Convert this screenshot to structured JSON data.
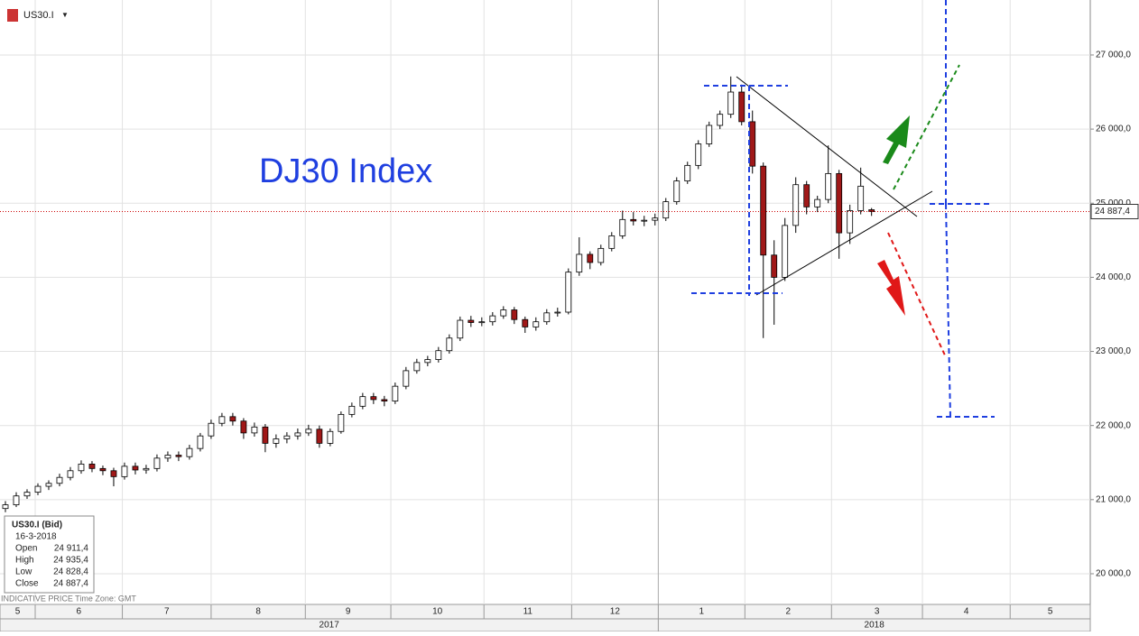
{
  "chart_data": {
    "type": "candlestick",
    "title": "DJ30 Index",
    "symbol": "US30.I",
    "footer": "INDICATIVE PRICE   Time Zone: GMT",
    "info": {
      "title": "US30.I (Bid)",
      "date": "16-3-2018",
      "rows": [
        {
          "name": "Open",
          "value": 24911.4,
          "label": "24 911,4"
        },
        {
          "name": "High",
          "value": 24935.4,
          "label": "24 935,4"
        },
        {
          "name": "Low",
          "value": 24828.4,
          "label": "24 828,4"
        },
        {
          "name": "Close",
          "value": 24887.4,
          "label": "24 887,4"
        }
      ]
    },
    "last_price": {
      "value": 24887.4,
      "label": "24 887,4"
    },
    "xlim": [
      -0.5,
      100.2
    ],
    "xticks": [
      2.75,
      10.8,
      19,
      27.7,
      35.6,
      44.2,
      52.3,
      60.3,
      68.3,
      76.3,
      84.7,
      92.8
    ],
    "periods": [
      "5",
      "6",
      "7",
      "8",
      "9",
      "10",
      "11",
      "12",
      "1",
      "2",
      "3",
      "4",
      "5"
    ],
    "years": [
      "2017",
      "2018"
    ],
    "ylim": [
      19732,
      27742
    ],
    "yticks": [
      {
        "value": 20000,
        "label": "20 000,0"
      },
      {
        "value": 21000,
        "label": "21 000,0"
      },
      {
        "value": 22000,
        "label": "22 000,0"
      },
      {
        "value": 23000,
        "label": "23 000,0"
      },
      {
        "value": 24000,
        "label": "24 000,0"
      },
      {
        "value": 25000,
        "label": "25 000,0"
      },
      {
        "value": 26000,
        "label": "26 000,0"
      },
      {
        "value": 27000,
        "label": "27 000,0"
      }
    ],
    "up_color": "#ffffff",
    "down_color": "#a01818",
    "open": [
      20880,
      20930,
      21050,
      21100,
      21180,
      21220,
      21300,
      21390,
      21480,
      21420,
      21390,
      21310,
      21450,
      21400,
      21420,
      21560,
      21600,
      21580,
      21690,
      21860,
      22030,
      22120,
      22060,
      21900,
      21980,
      21760,
      21820,
      21860,
      21900,
      21950,
      21760,
      21920,
      22150,
      22260,
      22390,
      22350,
      22330,
      22530,
      22740,
      22850,
      22890,
      23010,
      23180,
      23420,
      23390,
      23400,
      23480,
      23560,
      23430,
      23330,
      23400,
      23520,
      23530,
      24070,
      24310,
      24200,
      24390,
      24560,
      24780,
      24760,
      24770,
      24800,
      25020,
      25300,
      25510,
      25800,
      26050,
      26200,
      26500,
      26100,
      25500,
      24300,
      24000,
      24700,
      25250,
      24950,
      25050,
      25400,
      24600,
      24900,
      24911.4
    ],
    "high": [
      20980,
      21100,
      21140,
      21220,
      21260,
      21350,
      21440,
      21530,
      21520,
      21460,
      21430,
      21500,
      21500,
      21470,
      21610,
      21650,
      21650,
      21740,
      21900,
      22080,
      22170,
      22170,
      22100,
      22040,
      22020,
      21880,
      21910,
      21960,
      22010,
      22000,
      21960,
      22190,
      22310,
      22440,
      22440,
      22400,
      22580,
      22790,
      22900,
      22940,
      23060,
      23230,
      23470,
      23480,
      23460,
      23530,
      23610,
      23600,
      23470,
      23460,
      23570,
      23590,
      24120,
      24540,
      24350,
      24440,
      24610,
      24900,
      24880,
      24830,
      24860,
      25070,
      25350,
      25560,
      25850,
      26100,
      26250,
      26710,
      26600,
      26250,
      25550,
      24500,
      24800,
      25350,
      25300,
      25100,
      25780,
      25450,
      24980,
      25480,
      24935.4
    ],
    "low": [
      20830,
      20900,
      21010,
      21060,
      21130,
      21180,
      21260,
      21350,
      21370,
      21330,
      21180,
      21270,
      21340,
      21350,
      21380,
      21510,
      21520,
      21540,
      21650,
      21820,
      21990,
      22000,
      21820,
      21850,
      21640,
      21700,
      21760,
      21810,
      21860,
      21700,
      21720,
      21890,
      22110,
      22220,
      22290,
      22260,
      22290,
      22490,
      22700,
      22800,
      22850,
      22970,
      23140,
      23330,
      23340,
      23350,
      23440,
      23370,
      23250,
      23280,
      23360,
      23470,
      23500,
      24020,
      24110,
      24160,
      24350,
      24520,
      24700,
      24690,
      24700,
      24760,
      24980,
      25260,
      25460,
      25760,
      26000,
      26150,
      26050,
      25400,
      23180,
      23360,
      23950,
      24600,
      24850,
      24880,
      25000,
      24250,
      24450,
      24850,
      24828.4
    ],
    "close": [
      20930,
      21050,
      21100,
      21180,
      21220,
      21300,
      21390,
      21480,
      21420,
      21390,
      21310,
      21450,
      21400,
      21420,
      21560,
      21600,
      21580,
      21690,
      21860,
      22030,
      22120,
      22060,
      21900,
      21980,
      21760,
      21820,
      21860,
      21900,
      21950,
      21760,
      21920,
      22150,
      22260,
      22390,
      22350,
      22330,
      22530,
      22740,
      22850,
      22890,
      23010,
      23180,
      23420,
      23390,
      23400,
      23480,
      23560,
      23430,
      23330,
      23400,
      23520,
      23530,
      24070,
      24310,
      24200,
      24390,
      24560,
      24780,
      24760,
      24770,
      24800,
      25020,
      25300,
      25510,
      25800,
      26050,
      26200,
      26500,
      26100,
      25500,
      24300,
      24000,
      24700,
      25250,
      24950,
      25050,
      25400,
      24600,
      24900,
      25230,
      24887.4
    ]
  }
}
